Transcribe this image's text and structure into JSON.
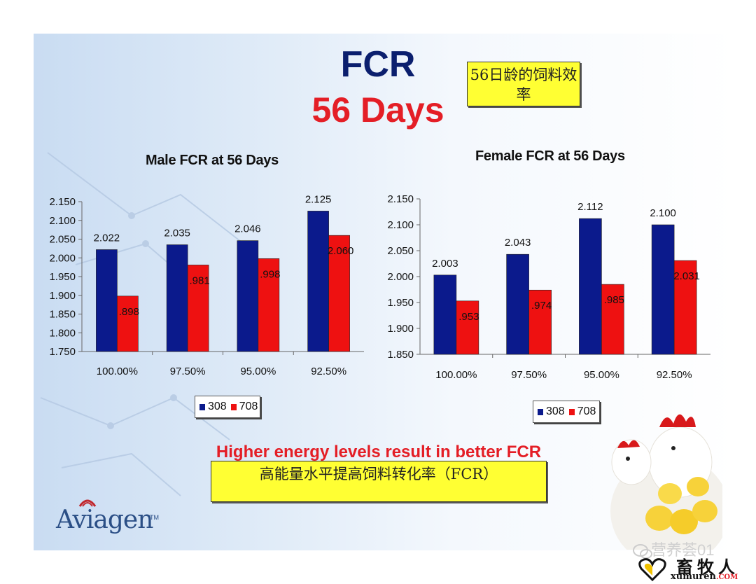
{
  "slide": {
    "title": "FCR",
    "subtitle": "56 Days",
    "title_note_cn": "56日龄的饲料效率",
    "message": "Higher energy levels result in better FCR",
    "message_cn": "高能量水平提高饲料转化率（FCR）",
    "logo": "Aviagen",
    "logo_tm": "TM",
    "watermark": "营养荟01",
    "brand_cn": "畜牧人",
    "brand_en": "xumuren",
    "brand_com": ".COM"
  },
  "colors": {
    "s308": "#0b1a8c",
    "s708": "#ee1111"
  },
  "chart_data": [
    {
      "type": "bar",
      "title": "Male FCR at 56 Days",
      "categories": [
        "100.00%",
        "97.50%",
        "95.00%",
        "92.50%"
      ],
      "series": [
        {
          "name": "308",
          "values": [
            2.022,
            2.035,
            2.046,
            2.125
          ]
        },
        {
          "name": "708",
          "values": [
            1.898,
            1.981,
            1.998,
            2.06
          ]
        }
      ],
      "data_labels": [
        [
          "2.022",
          "2.035",
          "2.046",
          "2.125"
        ],
        [
          ".898",
          ".981",
          ".998",
          "2.060"
        ]
      ],
      "ylim": [
        1.75,
        2.15
      ],
      "yticks": [
        "1.750",
        "1.800",
        "1.850",
        "1.900",
        "1.950",
        "2.000",
        "2.050",
        "2.100",
        "2.150"
      ],
      "legend": "bottom"
    },
    {
      "type": "bar",
      "title": "Female FCR at 56 Days",
      "categories": [
        "100.00%",
        "97.50%",
        "95.00%",
        "92.50%"
      ],
      "series": [
        {
          "name": "308",
          "values": [
            2.003,
            2.043,
            2.112,
            2.1
          ]
        },
        {
          "name": "708",
          "values": [
            1.953,
            1.974,
            1.985,
            2.031
          ]
        }
      ],
      "data_labels": [
        [
          "2.003",
          "2.043",
          "2.112",
          "2.100"
        ],
        [
          ".953",
          ".974",
          ".985",
          "2.031"
        ]
      ],
      "ylim": [
        1.85,
        2.15
      ],
      "yticks": [
        "1.850",
        "1.900",
        "1.950",
        "2.000",
        "2.050",
        "2.100",
        "2.150"
      ],
      "legend": "bottom"
    }
  ]
}
